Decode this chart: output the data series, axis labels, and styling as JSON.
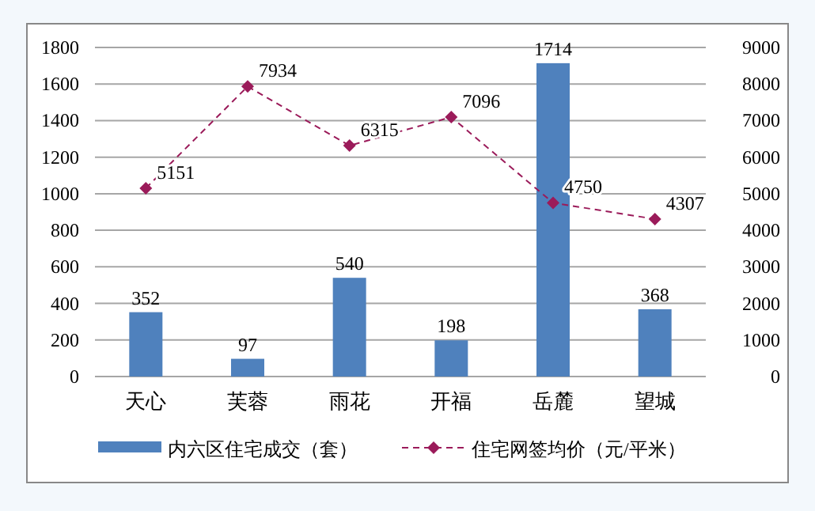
{
  "chart_data": {
    "type": "bar",
    "categories": [
      "天心",
      "芙蓉",
      "雨花",
      "开福",
      "岳麓",
      "望城"
    ],
    "series": [
      {
        "name": "内六区住宅成交（套）",
        "color": "#4f81bd",
        "values": [
          352,
          97,
          540,
          198,
          1714,
          368
        ]
      },
      {
        "name": "住宅网签均价（元/平米）",
        "type": "line",
        "axis": "y2",
        "color": "#9b1b5a",
        "marker": "diamond",
        "line_style": "dashed",
        "values": [
          5151,
          7934,
          6315,
          7096,
          4750,
          4307
        ]
      }
    ],
    "ylim": [
      0,
      1800
    ],
    "yticks": [
      0,
      200,
      400,
      600,
      800,
      1000,
      1200,
      1400,
      1600,
      1800
    ],
    "y2lim": [
      0,
      9000
    ],
    "y2ticks": [
      0,
      1000,
      2000,
      3000,
      4000,
      5000,
      6000,
      7000,
      8000,
      9000
    ],
    "grid": "y",
    "legend": "bottom",
    "data_labels": true
  }
}
